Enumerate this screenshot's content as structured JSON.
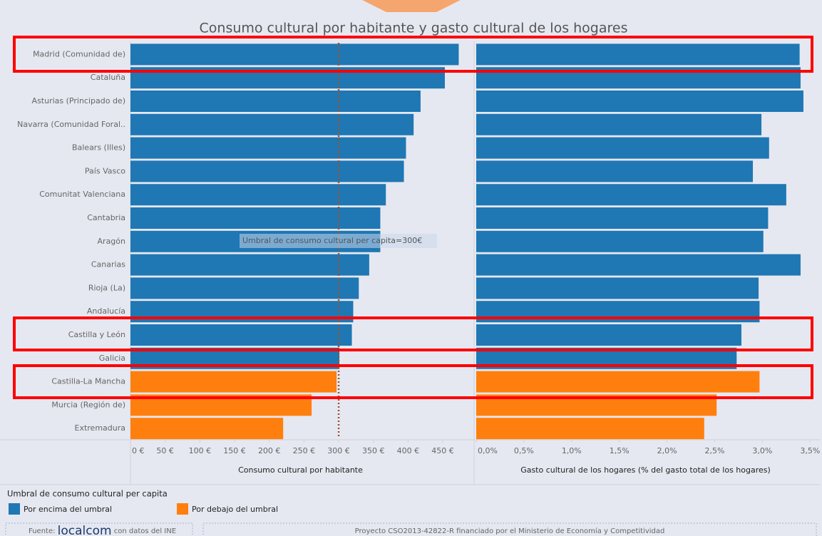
{
  "title": "Consumo cultural por habitante y gasto cultural de los hogares",
  "chart_data": [
    {
      "type": "bar",
      "orientation": "horizontal",
      "x_label": "Consumo cultural por habitante",
      "categories": [
        "Madrid (Comunidad de)",
        "Cataluña",
        "Asturias (Principado de)",
        "Navarra (Comunidad Foral..",
        "Balears (Illes)",
        "País Vasco",
        "Comunitat Valenciana",
        "Cantabria",
        "Aragón",
        "Canarias",
        "Rioja (La)",
        "Andalucía",
        "Castilla y León",
        "Galicia",
        "Castilla-La Mancha",
        "Murcia (Región de)",
        "Extremadura"
      ],
      "values": [
        473,
        453,
        418,
        408,
        397,
        394,
        368,
        360,
        360,
        344,
        329,
        321,
        319,
        301,
        297,
        261,
        220
      ],
      "colors": [
        "#1f77b4",
        "#1f77b4",
        "#1f77b4",
        "#1f77b4",
        "#1f77b4",
        "#1f77b4",
        "#1f77b4",
        "#1f77b4",
        "#1f77b4",
        "#1f77b4",
        "#1f77b4",
        "#1f77b4",
        "#1f77b4",
        "#1f77b4",
        "#ff7f0e",
        "#ff7f0e",
        "#ff7f0e"
      ],
      "xlim": [
        0,
        490
      ],
      "xticks": [
        {
          "value": 0,
          "label": "0 €"
        },
        {
          "value": 50,
          "label": "50 €"
        },
        {
          "value": 100,
          "label": "100 €"
        },
        {
          "value": 150,
          "label": "150 €"
        },
        {
          "value": 200,
          "label": "200 €"
        },
        {
          "value": 250,
          "label": "250 €"
        },
        {
          "value": 300,
          "label": "300 €"
        },
        {
          "value": 350,
          "label": "350 €"
        },
        {
          "value": 400,
          "label": "400 €"
        },
        {
          "value": 450,
          "label": "450 €"
        }
      ],
      "reference_line": {
        "value": 300,
        "label": "Umbral de consumo cultural per capita=300€",
        "color": "#a0522d"
      }
    },
    {
      "type": "bar",
      "orientation": "horizontal",
      "x_label": "Gasto cultural de los hogares (% del gasto total de los hogares)",
      "values": [
        3.39,
        3.4,
        3.43,
        2.99,
        3.07,
        2.9,
        3.25,
        3.06,
        3.01,
        3.4,
        2.96,
        2.97,
        2.78,
        2.73,
        2.97,
        2.52,
        2.39
      ],
      "colors": [
        "#1f77b4",
        "#1f77b4",
        "#1f77b4",
        "#1f77b4",
        "#1f77b4",
        "#1f77b4",
        "#1f77b4",
        "#1f77b4",
        "#1f77b4",
        "#1f77b4",
        "#1f77b4",
        "#1f77b4",
        "#1f77b4",
        "#1f77b4",
        "#ff7f0e",
        "#ff7f0e",
        "#ff7f0e"
      ],
      "xlim": [
        0,
        3.55
      ],
      "xticks": [
        {
          "value": 0,
          "label": "0,0%"
        },
        {
          "value": 0.5,
          "label": "0,5%"
        },
        {
          "value": 1,
          "label": "1,0%"
        },
        {
          "value": 1.5,
          "label": "1,5%"
        },
        {
          "value": 2,
          "label": "2,0%"
        },
        {
          "value": 2.5,
          "label": "2,5%"
        },
        {
          "value": 3,
          "label": "3,0%"
        },
        {
          "value": 3.5,
          "label": "3,5%"
        }
      ]
    }
  ],
  "legend": {
    "title": "Umbral de consumo cultural per capita",
    "items": [
      {
        "label": "Por encima del umbral",
        "color": "#1f77b4"
      },
      {
        "label": "Por debajo del umbral",
        "color": "#ff7f0e"
      }
    ]
  },
  "footer": {
    "source_prefix": "Fuente:",
    "source_brand": "localcom",
    "source_suffix": "con datos del INE",
    "project": "Proyecto CSO2013-42822-R financiado por el Ministerio de Economía y Competitividad"
  }
}
